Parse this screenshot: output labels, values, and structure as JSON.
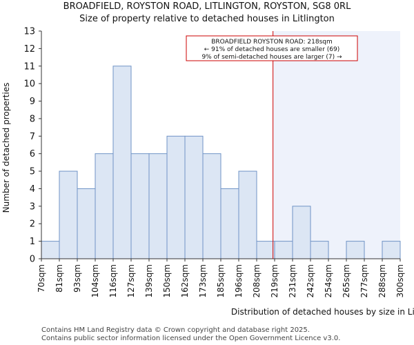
{
  "chart_data": {
    "type": "bar",
    "title": "BROADFIELD, ROYSTON ROAD, LITLINGTON, ROYSTON, SG8 0RL",
    "subtitle": "Size of property relative to detached houses in Litlington",
    "xlabel": "Distribution of detached houses by size in Litlington",
    "ylabel": "Number of detached properties",
    "bin_edges": [
      "70sqm",
      "81sqm",
      "93sqm",
      "104sqm",
      "116sqm",
      "127sqm",
      "139sqm",
      "150sqm",
      "162sqm",
      "173sqm",
      "185sqm",
      "196sqm",
      "208sqm",
      "219sqm",
      "231sqm",
      "242sqm",
      "254sqm",
      "265sqm",
      "277sqm",
      "288sqm",
      "300sqm"
    ],
    "values": [
      1,
      5,
      4,
      6,
      11,
      6,
      6,
      7,
      7,
      6,
      4,
      5,
      1,
      1,
      3,
      1,
      0,
      1,
      0,
      1
    ],
    "ylim": [
      0,
      13
    ],
    "yticks": [
      0,
      1,
      2,
      3,
      4,
      5,
      6,
      7,
      8,
      9,
      10,
      11,
      12,
      13
    ],
    "marker_value_sqm": 218,
    "annotation": {
      "line1": "BROADFIELD ROYSTON ROAD: 218sqm",
      "line2": "← 91% of detached houses are smaller (69)",
      "line3": "9% of semi-detached houses are larger (7) →"
    },
    "grid": false,
    "colors": {
      "bar_fill": "#dce6f4",
      "bar_stroke": "#6f93c6",
      "marker_line": "#cc0000",
      "shade": "#eef2fb",
      "annotation_border": "#cc0000"
    }
  },
  "footer": {
    "line1": "Contains HM Land Registry data © Crown copyright and database right 2025.",
    "line2": "Contains public sector information licensed under the Open Government Licence v3.0."
  }
}
